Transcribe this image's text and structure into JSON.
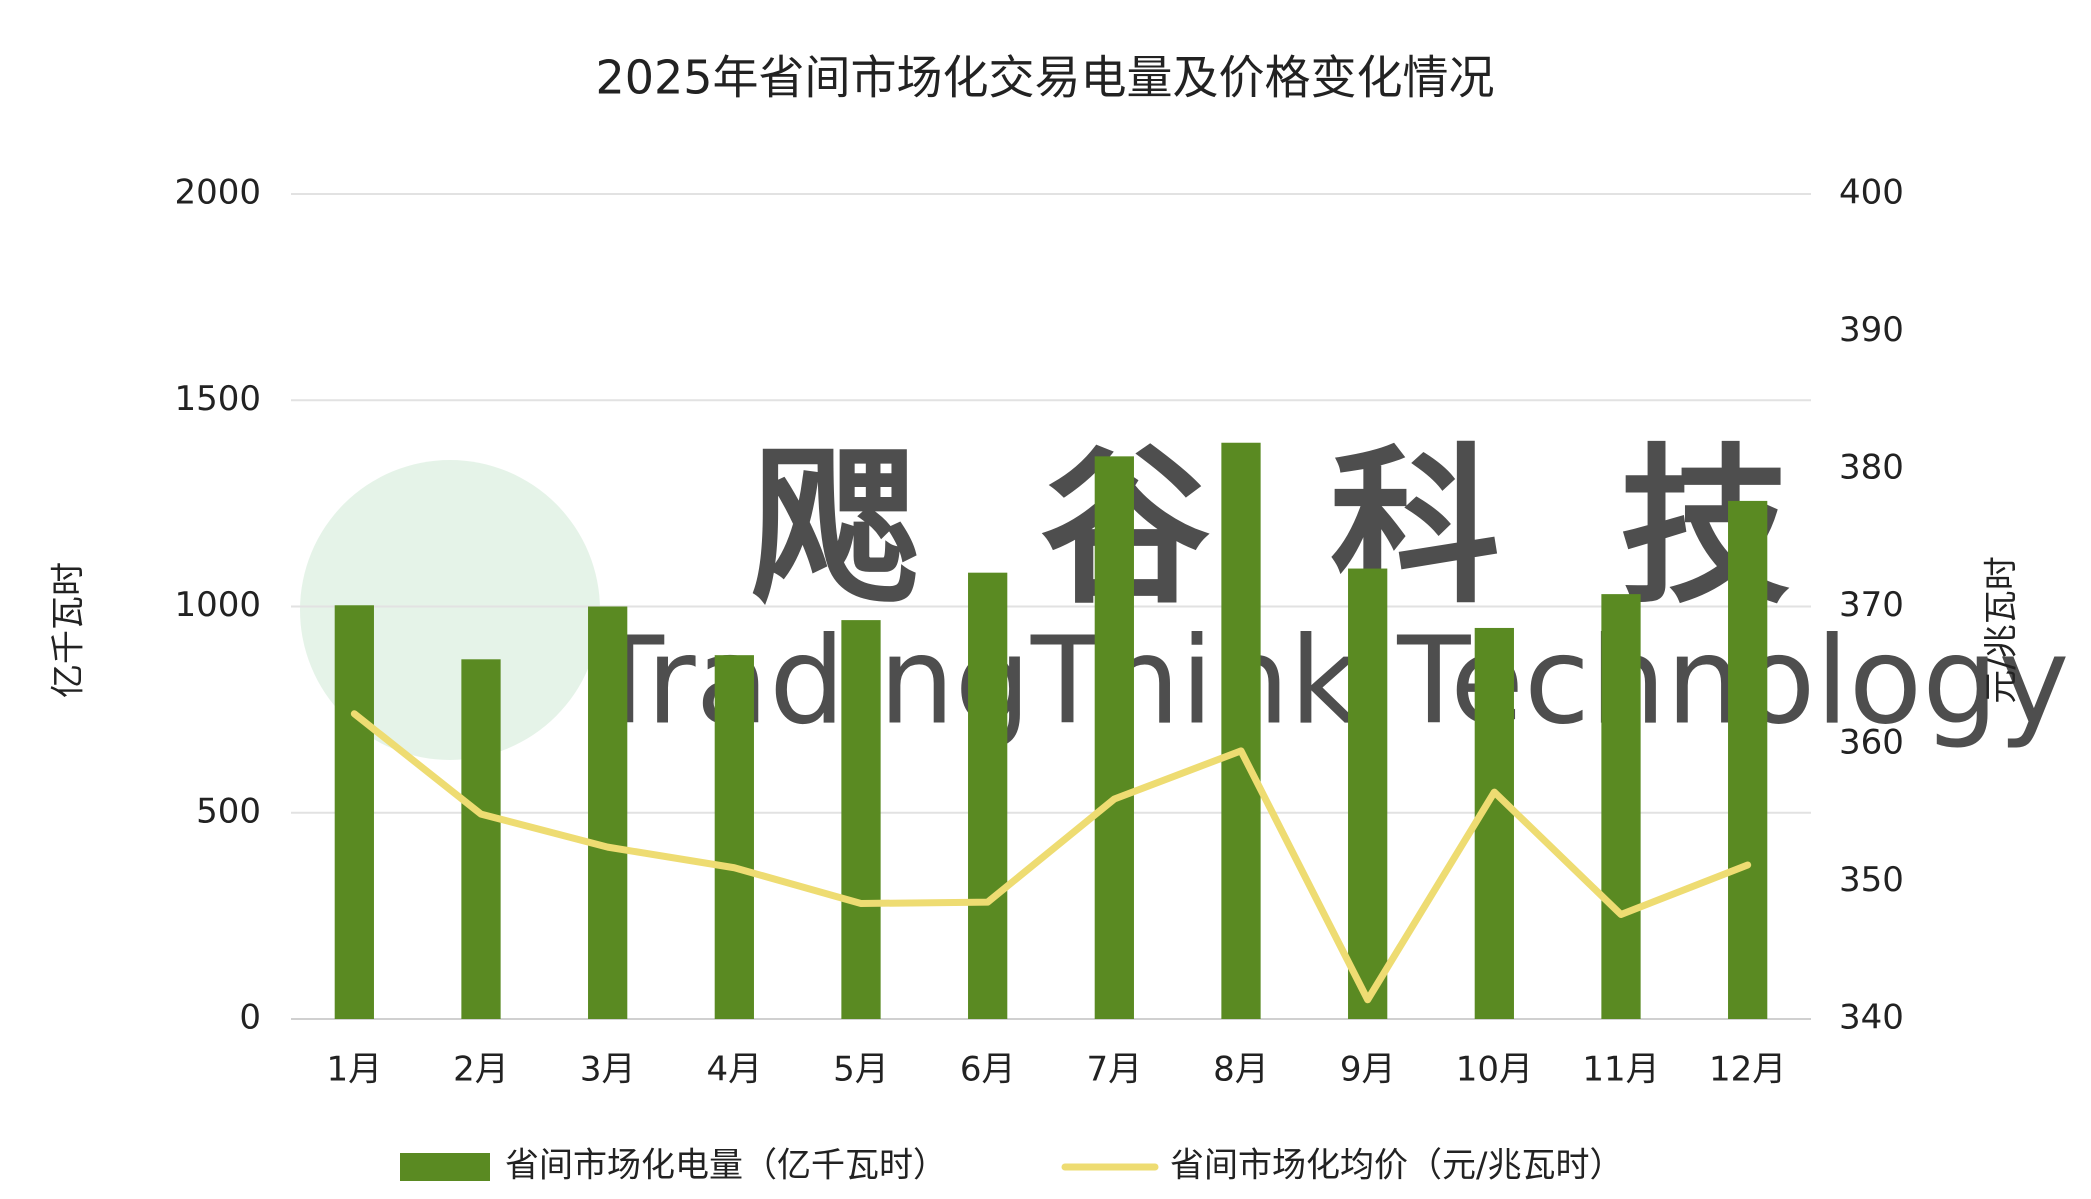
{
  "chart_data": {
    "type": "bar-line",
    "title": "2025年省间市场化交易电量及价格变化情况",
    "watermark": {
      "text": "飔谷科技",
      "subtext": "TradingThink Technology"
    },
    "categories": [
      "1月",
      "2月",
      "3月",
      "4月",
      "5月",
      "6月",
      "7月",
      "8月",
      "9月",
      "10月",
      "11月",
      "12月"
    ],
    "series": [
      {
        "name": "省间市场化电量（亿千瓦时）",
        "type": "bar",
        "color": "#5a8a22",
        "axis": "y",
        "values": [
          1003,
          872,
          1000,
          882,
          967,
          1082,
          1364,
          1397,
          1092,
          948,
          1030,
          1256
        ]
      },
      {
        "name": "省间市场化均价（元/兆瓦时）",
        "type": "line",
        "color": "#eedc72",
        "axis": "y2",
        "values": [
          362.2,
          354.9,
          352.5,
          351.0,
          348.4,
          348.5,
          356.0,
          359.5,
          341.4,
          356.5,
          347.6,
          351.2
        ]
      }
    ],
    "y_label": "亿千瓦时",
    "y2_label": "元/兆瓦时",
    "ylim": [
      0,
      2000
    ],
    "yticks": [
      0,
      500,
      1000,
      1500,
      2000
    ],
    "y2lim": [
      340,
      400
    ],
    "y2ticks": [
      340,
      350,
      360,
      370,
      380,
      390,
      400
    ],
    "grid": true,
    "legend": "bottom"
  }
}
